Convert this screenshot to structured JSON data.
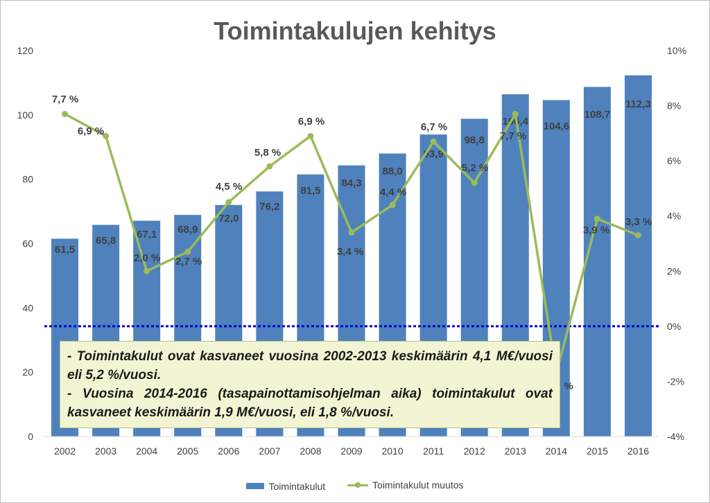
{
  "chart_data": {
    "type": "bar",
    "title": "Toimintakulujen kehitys",
    "categories": [
      "2002",
      "2003",
      "2004",
      "2005",
      "2006",
      "2007",
      "2008",
      "2009",
      "2010",
      "2011",
      "2012",
      "2013",
      "2014",
      "2015",
      "2016"
    ],
    "series": [
      {
        "name": "Toimintakulut",
        "type": "bar",
        "axis": "left",
        "values": [
          61.5,
          65.8,
          67.1,
          68.9,
          72.0,
          76.2,
          81.5,
          84.3,
          88.0,
          93.9,
          98.8,
          106.4,
          104.6,
          108.7,
          112.3
        ],
        "labels": [
          "61,5",
          "65,8",
          "67,1",
          "68,9",
          "72,0",
          "76,2",
          "81,5",
          "84,3",
          "88,0",
          "93,9",
          "98,8",
          "106,4",
          "104,6",
          "108,7",
          "112,3"
        ]
      },
      {
        "name": "Toimintakulut muutos",
        "type": "line",
        "axis": "right",
        "values": [
          7.7,
          6.9,
          2.0,
          2.7,
          4.5,
          5.8,
          6.9,
          3.4,
          4.4,
          6.7,
          5.2,
          7.7,
          -1.7,
          3.9,
          3.3
        ],
        "labels": [
          "7,7 %",
          "6,9 %",
          "2,0 %",
          "2,7 %",
          "4,5 %",
          "5,8 %",
          "6,9 %",
          "3,4 %",
          "4,4 %",
          "6,7 %",
          "5,2 %",
          "7,7 %",
          "%",
          "3,9 %",
          "3,3 %"
        ]
      }
    ],
    "y_left": {
      "min": 0,
      "max": 120,
      "ticks": [
        "0",
        "20",
        "40",
        "60",
        "80",
        "100",
        "120"
      ]
    },
    "y_right": {
      "min": -4,
      "max": 10,
      "ticks": [
        "-4%",
        "-2%",
        "0%",
        "2%",
        "4%",
        "6%",
        "8%",
        "10%"
      ]
    },
    "reference_line": {
      "axis": "right",
      "value": 0,
      "style": "dotted"
    },
    "legend_position": "bottom",
    "colors": {
      "bar": "#4f81bd",
      "line": "#9bbb59",
      "reference": "#0000cc"
    }
  },
  "note": {
    "line1": "- Toimintakulut ovat kasvaneet vuosina 2002-2013 keskimäärin 4,1 M€/vuosi eli 5,2 %/vuosi.",
    "line2": " - Vuosina 2014-2016 (tasapainottamisohjelman aika) toimintakulut ovat kasvaneet keskimäärin 1,9 M€/vuosi, eli 1,8 %/vuosi."
  }
}
